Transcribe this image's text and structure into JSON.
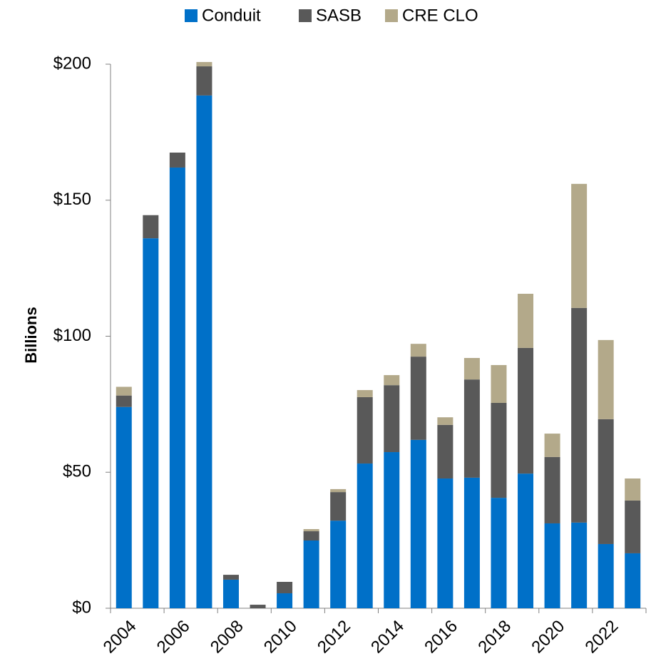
{
  "chart_data": {
    "type": "stacked_bar",
    "categories": [
      "2004",
      null,
      "2006",
      null,
      "2008",
      null,
      "2010",
      null,
      "2012",
      null,
      "2014",
      null,
      "2016",
      null,
      "2018",
      null,
      "2020",
      null,
      "2022",
      null
    ],
    "series": [
      {
        "name": "Conduit",
        "color": "#0070c8",
        "values": [
          74,
          136,
          162,
          188.5,
          10.5,
          0,
          5.5,
          24.9,
          32.2,
          53.2,
          57.4,
          61.9,
          47.7,
          48,
          40.6,
          49.5,
          31.2,
          31.5,
          23.6,
          20.2
        ]
      },
      {
        "name": "SASB",
        "color": "#595959",
        "values": [
          4.2,
          8.5,
          5.5,
          10.7,
          1.8,
          1.3,
          4.2,
          3.4,
          10.5,
          24.4,
          24.6,
          30.6,
          19.7,
          36.1,
          34.9,
          46.2,
          24.4,
          78.9,
          45.9,
          19.4
        ]
      },
      {
        "name": "CRE CLO",
        "color": "#b3a98a",
        "values": [
          3.2,
          0,
          0,
          1.6,
          0,
          0,
          0,
          0.8,
          1.1,
          2.6,
          3.7,
          4.7,
          2.8,
          7.9,
          13.9,
          19.9,
          8.6,
          45.6,
          29.1,
          8.1
        ]
      }
    ],
    "y_label": "Billions",
    "ylim": [
      0,
      200
    ],
    "yticks": [
      {
        "value": 0,
        "label": "$0"
      },
      {
        "value": 50,
        "label": "$50"
      },
      {
        "value": 100,
        "label": "$100"
      },
      {
        "value": 150,
        "label": "$150"
      },
      {
        "value": 200,
        "label": "$200"
      }
    ],
    "legend": "top"
  }
}
